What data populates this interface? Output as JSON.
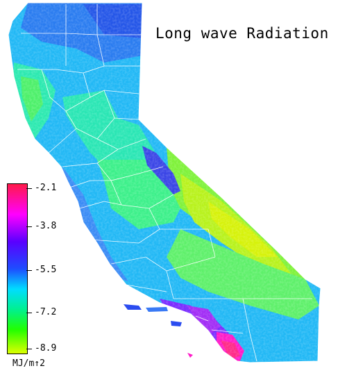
{
  "title": "Long wave Radiation",
  "legend": {
    "ticks": [
      "-2.1",
      "-3.8",
      "-5.5",
      "-7.2",
      "-8.9"
    ],
    "units": "MJ/m↑2",
    "colors": [
      "#ff1a4a",
      "#ff00ff",
      "#5a00ff",
      "#1e4dff",
      "#00ddff",
      "#00f090",
      "#22ff00",
      "#dcff00"
    ]
  },
  "map": {
    "region": "California",
    "boundaries": "county lines",
    "boundary_color": "#ffffff"
  }
}
